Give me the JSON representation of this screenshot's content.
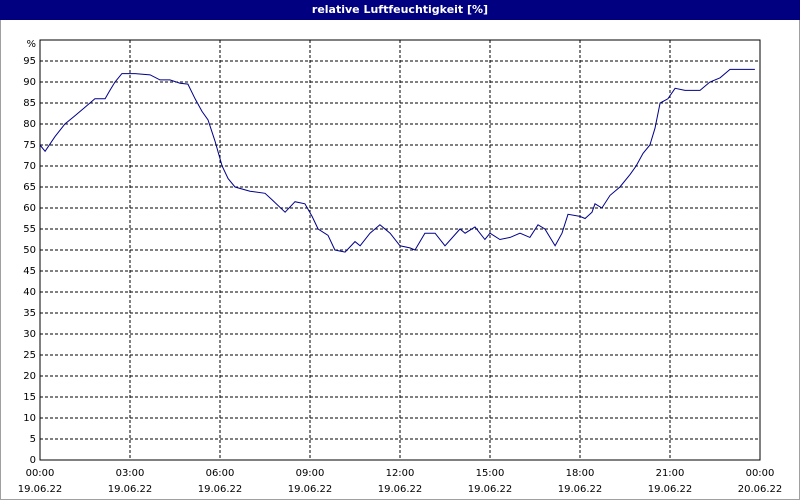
{
  "chart_data": {
    "type": "line",
    "title": "relative Luftfeuchtigkeit [%]",
    "ylabel": "%",
    "xlim": [
      0,
      24
    ],
    "ylim": [
      0,
      100
    ],
    "yticks": [
      0,
      5,
      10,
      15,
      20,
      25,
      30,
      35,
      40,
      45,
      50,
      55,
      60,
      65,
      70,
      75,
      80,
      85,
      90,
      95
    ],
    "xticks": [
      {
        "value": 0,
        "label": "00:00",
        "date": "19.06.22"
      },
      {
        "value": 3,
        "label": "03:00",
        "date": "19.06.22"
      },
      {
        "value": 6,
        "label": "06:00",
        "date": "19.06.22"
      },
      {
        "value": 9,
        "label": "09:00",
        "date": "19.06.22"
      },
      {
        "value": 12,
        "label": "12:00",
        "date": "19.06.22"
      },
      {
        "value": 15,
        "label": "15:00",
        "date": "19.06.22"
      },
      {
        "value": 18,
        "label": "18:00",
        "date": "19.06.22"
      },
      {
        "value": 21,
        "label": "21:00",
        "date": "19.06.22"
      },
      {
        "value": 24,
        "label": "00:00",
        "date": "20.06.22"
      }
    ],
    "grid": true,
    "series": [
      {
        "color": "#00008b",
        "x": [
          0,
          0.17,
          0.5,
          0.83,
          1.17,
          1.5,
          1.83,
          2.17,
          2.33,
          2.5,
          2.73,
          3.17,
          3.67,
          4,
          4.33,
          4.67,
          4.93,
          5.17,
          5.4,
          5.6,
          5.83,
          6.07,
          6.27,
          6.5,
          7,
          7.5,
          7.73,
          8.17,
          8.5,
          8.83,
          9.07,
          9.27,
          9.6,
          9.83,
          10.17,
          10.5,
          10.67,
          11,
          11.33,
          11.67,
          12,
          12.33,
          12.5,
          12.83,
          13.17,
          13.5,
          14,
          14.17,
          14.5,
          14.83,
          15,
          15.33,
          15.67,
          16,
          16.33,
          16.6,
          16.83,
          17.17,
          17.4,
          17.6,
          18,
          18.17,
          18.4,
          18.5,
          18.73,
          19,
          19.33,
          19.67,
          19.87,
          20.1,
          20.33,
          20.5,
          20.67,
          20.93,
          21.17,
          21.5,
          22,
          22.33,
          22.67,
          23,
          23.83
        ],
        "values": [
          75,
          73.5,
          77,
          80,
          82,
          84,
          86,
          86,
          88,
          90,
          92,
          92,
          91.7,
          90.5,
          90.5,
          89.7,
          89.5,
          86,
          83,
          81,
          76,
          70,
          67,
          65,
          64,
          63.5,
          62,
          59,
          61.5,
          61,
          58,
          55,
          53.5,
          50,
          49.5,
          52,
          51,
          54,
          56,
          54,
          51,
          50.5,
          50,
          54,
          54,
          51,
          55,
          54,
          55.5,
          52.5,
          54,
          52.5,
          53,
          54,
          53,
          56,
          55,
          51,
          54,
          58.5,
          58,
          57.5,
          59,
          61,
          60,
          63,
          65,
          68,
          70,
          73,
          75,
          79,
          85,
          86,
          88.5,
          88,
          88,
          90,
          91,
          93,
          93
        ]
      }
    ]
  }
}
